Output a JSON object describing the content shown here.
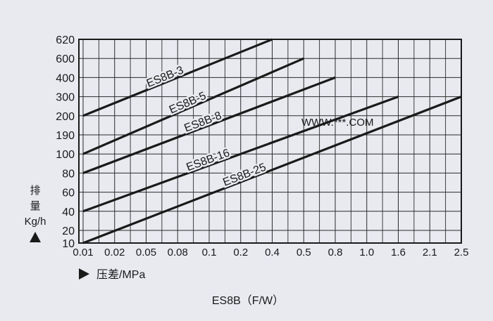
{
  "chart_data": {
    "type": "line",
    "title": "ES8B（F/W）",
    "xlabel": "压差/MPa",
    "ylabel_lines": [
      "排",
      "量",
      "Kg/h"
    ],
    "x_ticks": [
      "0.01",
      "0.02",
      "0.05",
      "0.08",
      "0.1",
      "0.2",
      "0.4",
      "0.5",
      "0.8",
      "1.0",
      "1.6",
      "2.1",
      "2.5"
    ],
    "y_ticks": [
      "10",
      "20",
      "40",
      "60",
      "80",
      "100",
      "190",
      "200",
      "300",
      "400",
      "600",
      "620"
    ],
    "watermark": "WWW.***.COM",
    "series": [
      {
        "name": "ES8B-3",
        "x": [
          "0.01",
          "0.4"
        ],
        "y": [
          "200",
          "620"
        ]
      },
      {
        "name": "ES8B-5",
        "x": [
          "0.01",
          "0.5"
        ],
        "y": [
          "100",
          "600"
        ]
      },
      {
        "name": "ES8B-8",
        "x": [
          "0.01",
          "0.8"
        ],
        "y": [
          "80",
          "400"
        ]
      },
      {
        "name": "ES8B-16",
        "x": [
          "0.01",
          "1.6"
        ],
        "y": [
          "40",
          "300"
        ]
      },
      {
        "name": "ES8B-25",
        "x": [
          "0.01",
          "2.5"
        ],
        "y": [
          "10",
          "300"
        ]
      }
    ],
    "line_color": "#1a1a1a",
    "grid": true
  }
}
